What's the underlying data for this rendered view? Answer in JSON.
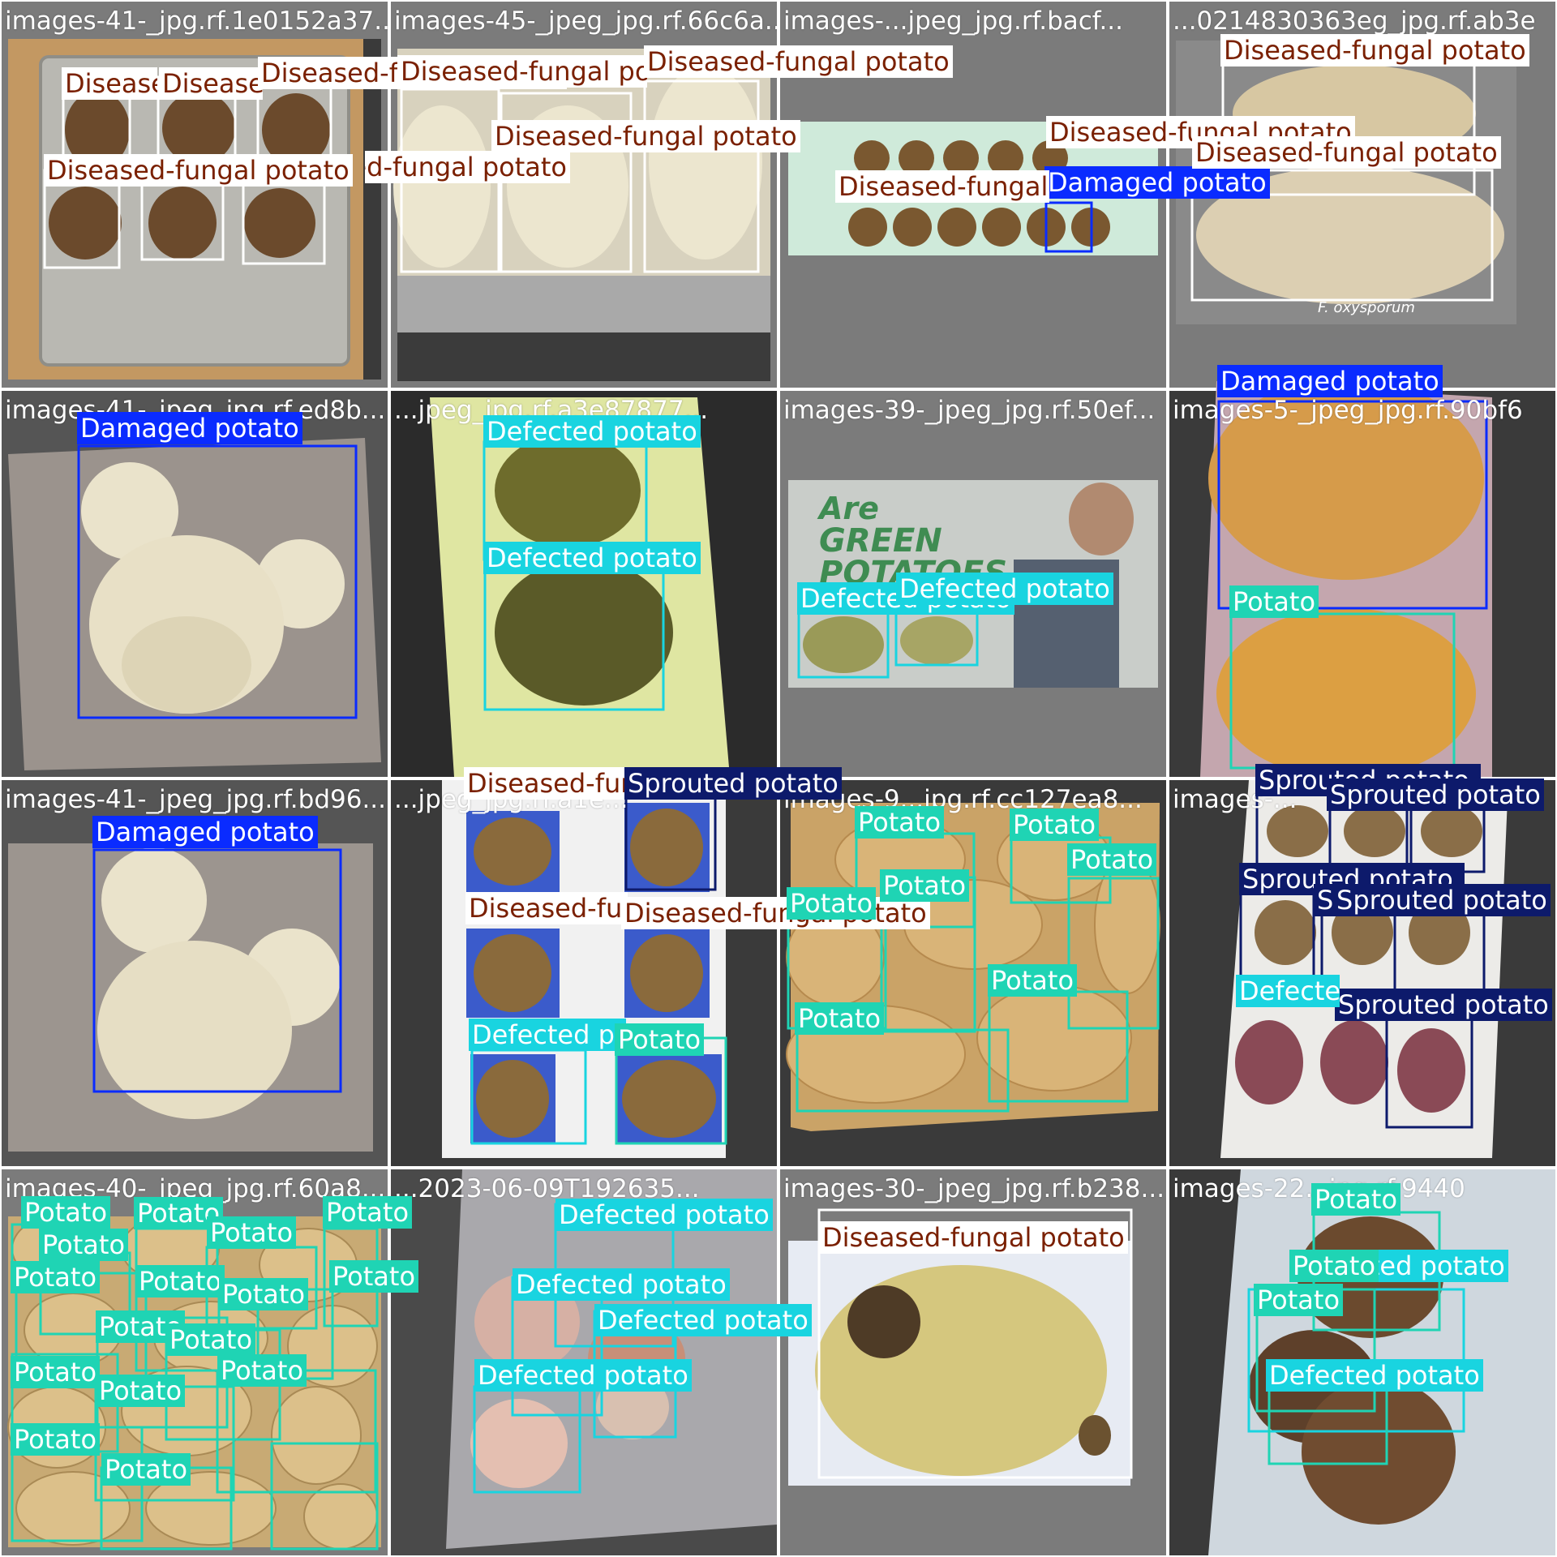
{
  "colors": {
    "diseased": "#ffffff",
    "diseased_text": "#7a2000",
    "damaged": "#0a2bff",
    "defected": "#19d4e0",
    "potato": "#1fd4b4",
    "sprouted": "#0d1a6b",
    "tile_bg": "#7b7b7b"
  },
  "tiles": [
    {
      "label": "images-41-_jpg.rf.1e0152a37...",
      "detections": [
        {
          "cls": "diseased",
          "label": "Diseased-fungal potato"
        },
        {
          "cls": "diseased",
          "label": "Diseased-fungal potato"
        },
        {
          "cls": "diseased",
          "label": "Diseased-fungal potato"
        },
        {
          "cls": "diseased",
          "label": "Diseased-fungal potato"
        },
        {
          "cls": "diseased",
          "label": "Diseased-fungal potato"
        },
        {
          "cls": "diseased",
          "label": "Diseased-fungal potato"
        }
      ]
    },
    {
      "label": "images-45-_jpeg_jpg.rf.66c6a...",
      "detections": [
        {
          "cls": "diseased",
          "label": "Diseased-fungal potato"
        },
        {
          "cls": "diseased",
          "label": "Diseased-fungal potato"
        },
        {
          "cls": "diseased",
          "label": "Diseased-fungal potato"
        },
        {
          "cls": "diseased",
          "label": "Diseased-fungal potato"
        }
      ]
    },
    {
      "label": "images-...jpeg_jpg.rf.bacf...",
      "detections": [
        {
          "cls": "diseased",
          "label": "Diseased-fungal potato"
        },
        {
          "cls": "damaged",
          "label": "Damaged potato"
        },
        {
          "cls": "diseased",
          "label": "Diseased-fungal potato"
        }
      ]
    },
    {
      "label": "...0214830363eg_jpg.rf.ab3e",
      "detections": [
        {
          "cls": "diseased",
          "label": "Diseased-fungal potato"
        },
        {
          "cls": "diseased",
          "label": "Diseased-fungal potato"
        }
      ]
    },
    {
      "label": "images-41-_jpeg_jpg.rf.ed8b...",
      "detections": [
        {
          "cls": "damaged",
          "label": "Damaged potato"
        }
      ]
    },
    {
      "label": "...jpeg_jpg.rf.a3e87877...",
      "detections": [
        {
          "cls": "defected",
          "label": "Defected potato"
        },
        {
          "cls": "defected",
          "label": "Defected potato"
        }
      ]
    },
    {
      "label": "images-39-_jpeg_jpg.rf.50ef...",
      "detections": [
        {
          "cls": "defected",
          "label": "Defected potato"
        },
        {
          "cls": "defected",
          "label": "Defected potato"
        }
      ]
    },
    {
      "label": "images-5-_jpeg_jpg.rf.90bf6",
      "detections": [
        {
          "cls": "damaged",
          "label": "Damaged potato"
        },
        {
          "cls": "potato",
          "label": "Potato"
        }
      ]
    },
    {
      "label": "images-41-_jpeg_jpg.rf.bd96...",
      "detections": [
        {
          "cls": "damaged",
          "label": "Damaged potato"
        }
      ]
    },
    {
      "label": "...jpeg_jpg.rf.a1e...",
      "detections": [
        {
          "cls": "diseased",
          "label": "Diseased-fungal potato"
        },
        {
          "cls": "sprouted",
          "label": "Sprouted potato"
        },
        {
          "cls": "diseased",
          "label": "Diseased-fungal potato"
        },
        {
          "cls": "diseased",
          "label": "Diseased-fungal potato"
        },
        {
          "cls": "defected",
          "label": "Defected potato"
        },
        {
          "cls": "potato",
          "label": "Potato"
        }
      ]
    },
    {
      "label": "images-9...jpg.rf.cc127ea8...",
      "detections": [
        {
          "cls": "potato",
          "label": "Potato"
        },
        {
          "cls": "potato",
          "label": "Potato"
        },
        {
          "cls": "potato",
          "label": "Potato"
        },
        {
          "cls": "potato",
          "label": "Potato"
        },
        {
          "cls": "potato",
          "label": "Potato"
        },
        {
          "cls": "potato",
          "label": "Potato"
        },
        {
          "cls": "potato",
          "label": "Potato"
        }
      ]
    },
    {
      "label": "images-...",
      "detections": [
        {
          "cls": "sprouted",
          "label": "Sprouted potato"
        },
        {
          "cls": "sprouted",
          "label": "Sprouted potato"
        },
        {
          "cls": "sprouted",
          "label": "Sprouted potato"
        },
        {
          "cls": "sprouted",
          "label": "Sprouted potato"
        },
        {
          "cls": "sprouted",
          "label": "Sprouted potato"
        },
        {
          "cls": "sprouted",
          "label": "Sprouted potato"
        },
        {
          "cls": "defected",
          "label": "Defected potato"
        }
      ]
    },
    {
      "label": "images-40-_jpeg_jpg.rf.60a8...",
      "detections": [
        {
          "cls": "potato",
          "label": "Potato"
        },
        {
          "cls": "potato",
          "label": "Potato"
        },
        {
          "cls": "potato",
          "label": "Potato"
        },
        {
          "cls": "potato",
          "label": "Potato"
        },
        {
          "cls": "potato",
          "label": "Potato"
        },
        {
          "cls": "potato",
          "label": "Potato"
        },
        {
          "cls": "potato",
          "label": "Potato"
        },
        {
          "cls": "potato",
          "label": "Potato"
        },
        {
          "cls": "potato",
          "label": "Potato"
        },
        {
          "cls": "potato",
          "label": "Potato"
        },
        {
          "cls": "potato",
          "label": "Potato"
        },
        {
          "cls": "potato",
          "label": "Potato"
        },
        {
          "cls": "potato",
          "label": "Potato"
        },
        {
          "cls": "potato",
          "label": "Potato"
        },
        {
          "cls": "potato",
          "label": "Potato"
        },
        {
          "cls": "potato",
          "label": "Potato"
        }
      ]
    },
    {
      "label": "...2023-06-09T192635...",
      "detections": [
        {
          "cls": "defected",
          "label": "Defected potato"
        },
        {
          "cls": "defected",
          "label": "Defected potato"
        },
        {
          "cls": "defected",
          "label": "Defected potato"
        },
        {
          "cls": "defected",
          "label": "Defected potato"
        }
      ]
    },
    {
      "label": "images-30-_jpeg_jpg.rf.b238...",
      "detections": [
        {
          "cls": "diseased",
          "label": "Diseased-fungal potato"
        }
      ]
    },
    {
      "label": "images-22...jpg.rf.9440",
      "detections": [
        {
          "cls": "potato",
          "label": "Potato"
        },
        {
          "cls": "defected",
          "label": "Defected potato"
        },
        {
          "cls": "potato",
          "label": "Potato"
        },
        {
          "cls": "potato",
          "label": "Potato"
        },
        {
          "cls": "defected",
          "label": "Defected potato"
        }
      ]
    }
  ],
  "captions": {
    "oxysporum": "F. oxysporum"
  }
}
